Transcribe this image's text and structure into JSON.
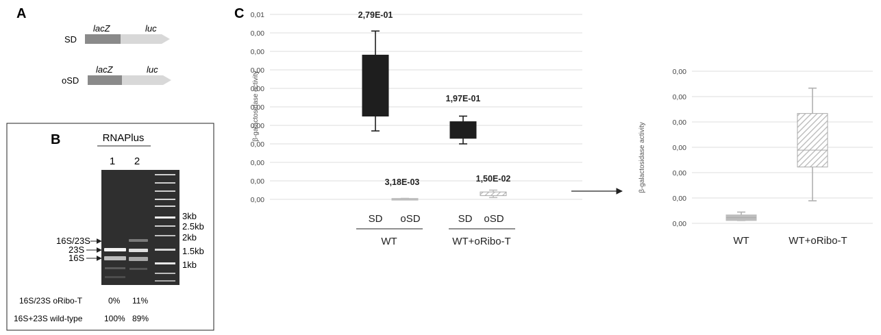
{
  "panel_a": {
    "letter": "A",
    "constructs": [
      {
        "label": "SD",
        "gene1": "lacZ",
        "gene2": "luc"
      },
      {
        "label": "oSD",
        "gene1": "lacZ",
        "gene2": "luc"
      }
    ]
  },
  "panel_b": {
    "letter": "B",
    "header": "RNAPlus",
    "lanes": [
      "1",
      "2"
    ],
    "ladder_labels": [
      "3kb",
      "2.5kb",
      "2kb",
      "1.5kb",
      "1kb"
    ],
    "band_labels": [
      "16S/23S",
      "23S",
      "16S"
    ],
    "rows": [
      {
        "label": "16S/23S oRibo-T",
        "values": [
          "0%",
          "11%"
        ]
      },
      {
        "label": "16S+23S wild-type",
        "values": [
          "100%",
          "89%"
        ]
      }
    ]
  },
  "panel_c": {
    "letter": "C"
  },
  "chart_data": [
    {
      "type": "box",
      "ylabel": "β-galactosidase activity",
      "y_tick_labels": [
        "0,01",
        "0,00",
        "0,00",
        "0,00",
        "0,00",
        "0,00",
        "0,00",
        "0,00",
        "0,00",
        "0,00",
        "0,00"
      ],
      "groups": [
        {
          "name": "WT",
          "categories": [
            "SD",
            "oSD"
          ]
        },
        {
          "name": "WT+oRibo-T",
          "categories": [
            "SD",
            "oSD"
          ]
        }
      ],
      "boxes": [
        {
          "group": "WT",
          "category": "SD",
          "label": "2,79E-01",
          "min": 0.0037,
          "q1": 0.0045,
          "median": 0.0045,
          "q3": 0.0078,
          "max": 0.0091,
          "color": "#1e1e1e"
        },
        {
          "group": "WT",
          "category": "oSD",
          "label": "3,18E-03",
          "min": 5e-05,
          "q1": 5e-05,
          "median": 5e-05,
          "q3": 5e-05,
          "max": 5e-05,
          "color": "#bdbdbd"
        },
        {
          "group": "WT+oRibo-T",
          "category": "SD",
          "label": "1,97E-01",
          "min": 0.003,
          "q1": 0.0033,
          "median": 0.0033,
          "q3": 0.0042,
          "max": 0.0045,
          "color": "#1e1e1e"
        },
        {
          "group": "WT+oRibo-T",
          "category": "oSD",
          "label": "1,50E-02",
          "min": 0.0001,
          "q1": 0.0002,
          "median": 0.0003,
          "q3": 0.0004,
          "max": 0.0005,
          "color": "#bdbdbd"
        }
      ]
    },
    {
      "type": "box",
      "ylabel": "β-galactosidase activity",
      "y_tick_labels": [
        "0,00",
        "0,00",
        "0,00",
        "0,00",
        "0,00",
        "0,00",
        "0,00"
      ],
      "categories": [
        "WT",
        "WT+oRibo-T"
      ],
      "boxes": [
        {
          "category": "WT",
          "min": 0.0007,
          "q1": 0.0007,
          "median": 0.0008,
          "q3": 0.0009,
          "max": 0.001,
          "color": "#bdbdbd"
        },
        {
          "category": "WT+oRibo-T",
          "min": 0.0014,
          "q1": 0.0026,
          "median": 0.0032,
          "q3": 0.0045,
          "max": 0.0054,
          "color": "#bdbdbd"
        }
      ]
    }
  ]
}
